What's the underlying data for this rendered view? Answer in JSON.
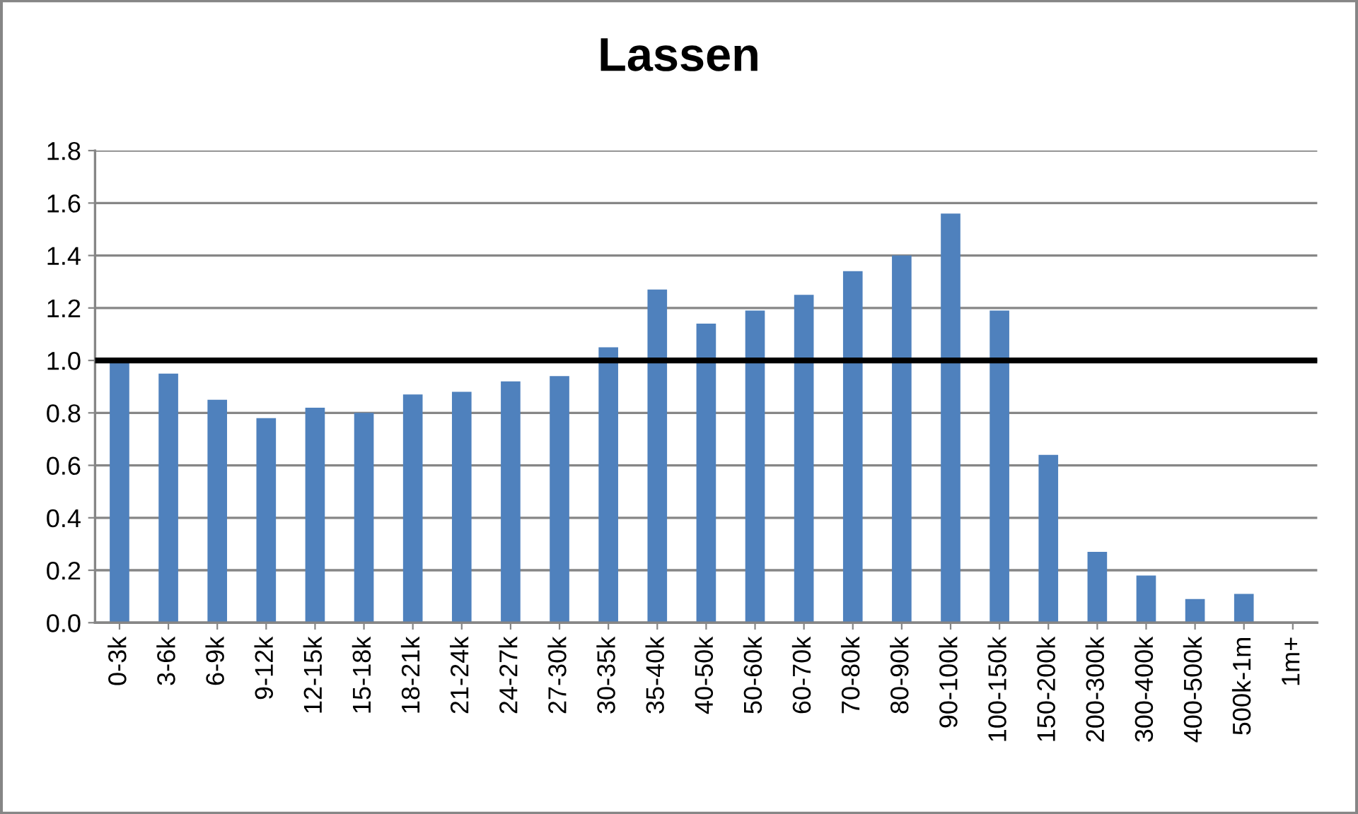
{
  "chart_data": {
    "type": "bar",
    "title": "Lassen",
    "categories": [
      "0-3k",
      "3-6k",
      "6-9k",
      "9-12k",
      "12-15k",
      "15-18k",
      "18-21k",
      "21-24k",
      "24-27k",
      "27-30k",
      "30-35k",
      "35-40k",
      "40-50k",
      "50-60k",
      "60-70k",
      "70-80k",
      "80-90k",
      "90-100k",
      "100-150k",
      "150-200k",
      "200-300k",
      "300-400k",
      "400-500k",
      "500k-1m",
      "1m+"
    ],
    "values": [
      0.99,
      0.95,
      0.85,
      0.78,
      0.82,
      0.8,
      0.87,
      0.88,
      0.92,
      0.94,
      1.05,
      1.27,
      1.14,
      1.19,
      1.25,
      1.34,
      1.4,
      1.56,
      1.19,
      0.64,
      0.27,
      0.18,
      0.09,
      0.11,
      null
    ],
    "color": "#4f81bd",
    "ylim": [
      0,
      1.8
    ],
    "yticks": [
      {
        "value": 0,
        "label": "0.0"
      },
      {
        "value": 0.2,
        "label": "0.2"
      },
      {
        "value": 0.4,
        "label": "0.4"
      },
      {
        "value": 0.6,
        "label": "0.6"
      },
      {
        "value": 0.8,
        "label": "0.8"
      },
      {
        "value": 1.0,
        "label": "1.0"
      },
      {
        "value": 1.2,
        "label": "1.2"
      },
      {
        "value": 1.4,
        "label": "1.4"
      },
      {
        "value": 1.6,
        "label": "1.6"
      },
      {
        "value": 1.8,
        "label": "1.8"
      }
    ],
    "grid": "y",
    "ref_lines": [
      {
        "axis": "y",
        "value": 1.0,
        "color": "#000000",
        "line_style": "solid"
      }
    ]
  }
}
